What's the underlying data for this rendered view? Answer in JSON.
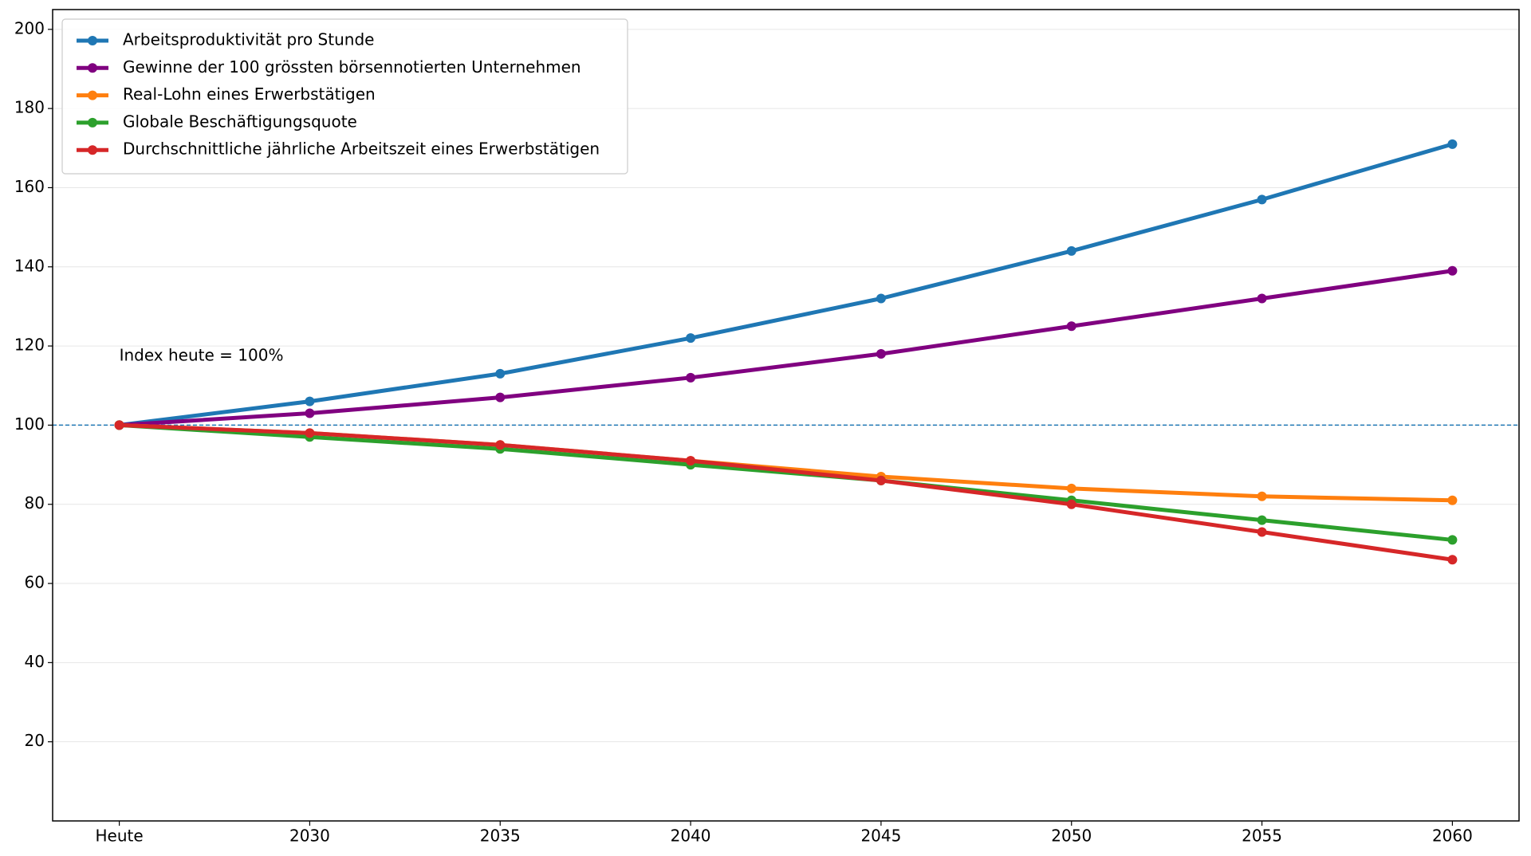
{
  "chart_data": {
    "type": "line",
    "annotation": "Index heute = 100%",
    "categories": [
      "Heute",
      "2030",
      "2035",
      "2040",
      "2045",
      "2050",
      "2055",
      "2060"
    ],
    "series": [
      {
        "name": "Arbeitsproduktivität pro Stunde",
        "color": "#1f77b4",
        "values": [
          100,
          106,
          113,
          122,
          132,
          144,
          157,
          171
        ]
      },
      {
        "name": "Gewinne der 100 grössten börsennotierten Unternehmen",
        "color": "#800080",
        "values": [
          100,
          103,
          107,
          112,
          118,
          125,
          132,
          139
        ]
      },
      {
        "name": "Real-Lohn eines Erwerbstätigen",
        "color": "#ff7f0e",
        "values": [
          100,
          98,
          95,
          91,
          87,
          84,
          82,
          81
        ]
      },
      {
        "name": "Globale Beschäftigungsquote",
        "color": "#2ca02c",
        "values": [
          100,
          97,
          94,
          90,
          86,
          81,
          76,
          71
        ]
      },
      {
        "name": "Durchschnittliche jährliche Arbeitszeit eines Erwerbstätigen",
        "color": "#d62728",
        "values": [
          100,
          98,
          95,
          91,
          86,
          80,
          73,
          66
        ]
      }
    ],
    "reference_line": {
      "value": 100,
      "color": "#1f77b4"
    },
    "ylim": [
      0,
      205
    ],
    "yticks": [
      20,
      40,
      60,
      80,
      100,
      120,
      140,
      160,
      180,
      200
    ],
    "grid": true,
    "legend": "upper left"
  }
}
